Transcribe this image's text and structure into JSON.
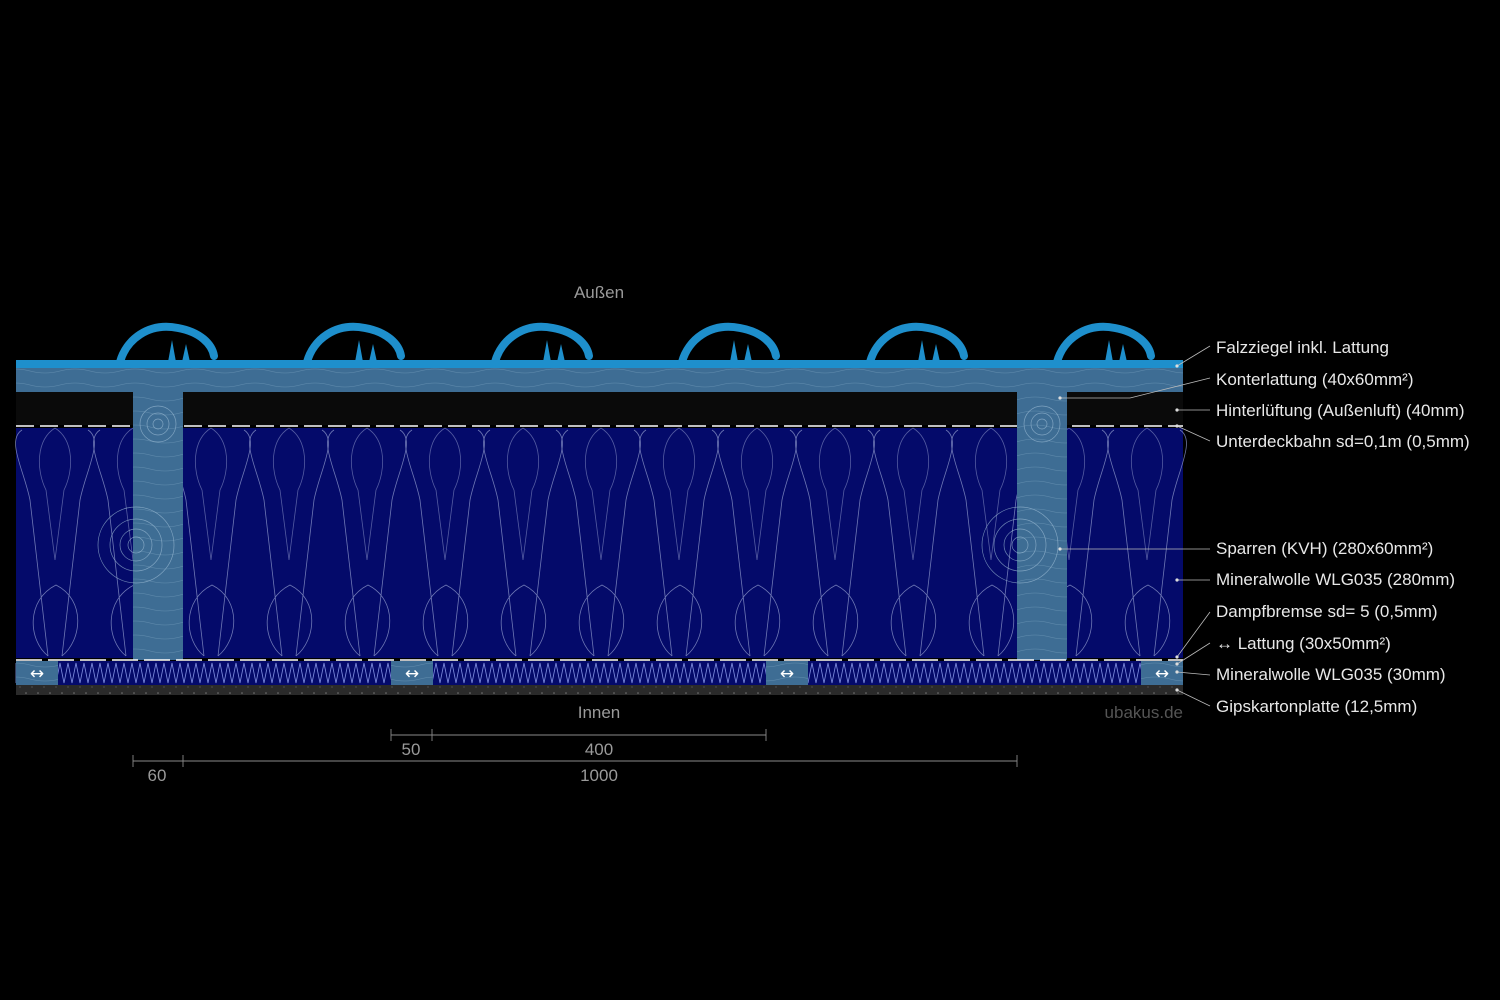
{
  "sides": {
    "outside": "Außen",
    "inside": "Innen"
  },
  "watermark": "ubakus.de",
  "layers": [
    {
      "label": "Falzziegel inkl. Lattung"
    },
    {
      "label": "Konterlattung (40x60mm²)"
    },
    {
      "label": "Hinterlüftung (Außenluft) (40mm)"
    },
    {
      "label": "Unterdeckbahn sd=0,1m (0,5mm)"
    },
    {
      "label": "Sparren (KVH) (280x60mm²)"
    },
    {
      "label": "Mineralwolle WLG035 (280mm)"
    },
    {
      "label": "Dampfbremse sd= 5 (0,5mm)"
    },
    {
      "label": "↔ Lattung (30x50mm²)"
    },
    {
      "label": "Mineralwolle WLG035 (30mm)"
    },
    {
      "label": "Gipskartonplatte (12,5mm)"
    }
  ],
  "dimensions": {
    "lath_width": "50",
    "lath_spacing": "400",
    "rafter_width": "60",
    "rafter_spacing": "1000"
  },
  "lath_glyph": "↔",
  "colors": {
    "background": "#000000",
    "tile": "#1e8fcc",
    "insulation": "#040a6a",
    "wood": "#3e6d94",
    "air": "#0a0a0a",
    "gypsum": "#2a2a2a"
  }
}
